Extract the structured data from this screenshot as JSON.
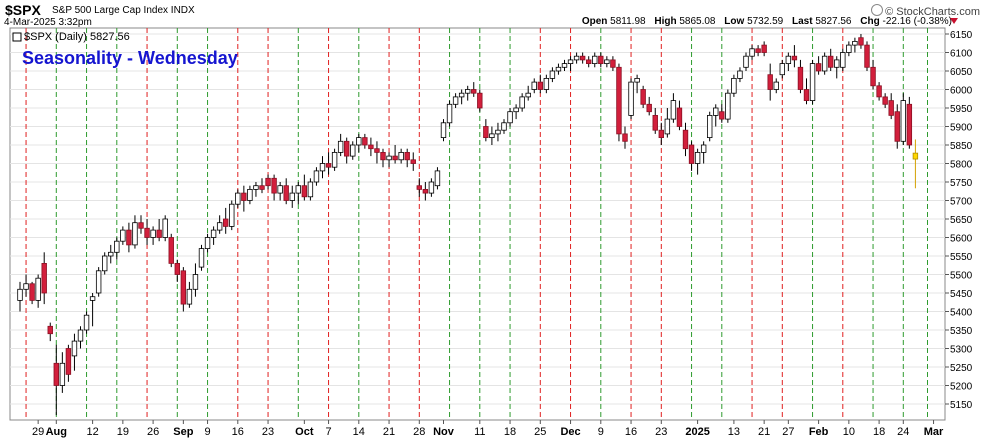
{
  "header": {
    "symbol": "$SPX",
    "name": "S&P 500 Large Cap Index",
    "exchange": "INDX",
    "brand": "© StockCharts.com",
    "datetime": "4-Mar-2025 3:32pm",
    "open_label": "Open",
    "open": "5811.98",
    "high_label": "High",
    "high": "5865.08",
    "low_label": "Low",
    "low": "5732.59",
    "last_label": "Last",
    "last": "5827.56",
    "chg_label": "Chg",
    "chg": "-22.16 (-0.38%)",
    "legend": "$SPX (Daily) 5827.56",
    "overlay_title": "Seasonality - Wednesday"
  },
  "colors": {
    "up": "#ffffff",
    "down": "#d21f3c",
    "current": "#ffd700",
    "green_line": "#2e9b2e",
    "red_line": "#e02020",
    "overlay_title": "#1515d0"
  },
  "chart_data": {
    "type": "candlestick",
    "title": "Seasonality - Wednesday",
    "series_name": "$SPX (Daily)",
    "ylim": [
      5100,
      6175
    ],
    "y_ticks": [
      5150,
      5200,
      5250,
      5300,
      5350,
      5400,
      5450,
      5500,
      5550,
      5600,
      5650,
      5700,
      5750,
      5800,
      5850,
      5900,
      5950,
      6000,
      6050,
      6100,
      6150
    ],
    "x_tick_labels": [
      {
        "label": "29",
        "bold": false,
        "day": 3
      },
      {
        "label": "Aug",
        "bold": true,
        "day": 6
      },
      {
        "label": "12",
        "bold": false,
        "day": 12
      },
      {
        "label": "19",
        "bold": false,
        "day": 17
      },
      {
        "label": "26",
        "bold": false,
        "day": 22
      },
      {
        "label": "Sep",
        "bold": true,
        "day": 27
      },
      {
        "label": "9",
        "bold": false,
        "day": 31
      },
      {
        "label": "16",
        "bold": false,
        "day": 36
      },
      {
        "label": "23",
        "bold": false,
        "day": 41
      },
      {
        "label": "Oct",
        "bold": true,
        "day": 47
      },
      {
        "label": "7",
        "bold": false,
        "day": 51
      },
      {
        "label": "14",
        "bold": false,
        "day": 56
      },
      {
        "label": "21",
        "bold": false,
        "day": 61
      },
      {
        "label": "28",
        "bold": false,
        "day": 66
      },
      {
        "label": "Nov",
        "bold": true,
        "day": 70
      },
      {
        "label": "11",
        "bold": false,
        "day": 76
      },
      {
        "label": "18",
        "bold": false,
        "day": 81
      },
      {
        "label": "25",
        "bold": false,
        "day": 86
      },
      {
        "label": "Dec",
        "bold": true,
        "day": 91
      },
      {
        "label": "9",
        "bold": false,
        "day": 96
      },
      {
        "label": "16",
        "bold": false,
        "day": 101
      },
      {
        "label": "23",
        "bold": false,
        "day": 106
      },
      {
        "label": "2025",
        "bold": true,
        "day": 112
      },
      {
        "label": "13",
        "bold": false,
        "day": 118
      },
      {
        "label": "21",
        "bold": false,
        "day": 123
      },
      {
        "label": "27",
        "bold": false,
        "day": 127
      },
      {
        "label": "Feb",
        "bold": true,
        "day": 132
      },
      {
        "label": "10",
        "bold": false,
        "day": 137
      },
      {
        "label": "18",
        "bold": false,
        "day": 142
      },
      {
        "label": "24",
        "bold": false,
        "day": 146
      },
      {
        "label": "Mar",
        "bold": true,
        "day": 151
      }
    ],
    "wednesday_markers": [
      {
        "day": 1,
        "color": "red"
      },
      {
        "day": 6,
        "color": "green"
      },
      {
        "day": 11,
        "color": "green"
      },
      {
        "day": 16,
        "color": "green"
      },
      {
        "day": 21,
        "color": "red"
      },
      {
        "day": 26,
        "color": "green"
      },
      {
        "day": 31,
        "color": "green"
      },
      {
        "day": 36,
        "color": "red"
      },
      {
        "day": 41,
        "color": "red"
      },
      {
        "day": 46,
        "color": "green"
      },
      {
        "day": 51,
        "color": "red"
      },
      {
        "day": 56,
        "color": "green"
      },
      {
        "day": 61,
        "color": "red"
      },
      {
        "day": 66,
        "color": "red"
      },
      {
        "day": 71,
        "color": "green"
      },
      {
        "day": 76,
        "color": "green"
      },
      {
        "day": 81,
        "color": "green"
      },
      {
        "day": 86,
        "color": "red"
      },
      {
        "day": 91,
        "color": "red"
      },
      {
        "day": 96,
        "color": "green"
      },
      {
        "day": 101,
        "color": "red"
      },
      {
        "day": 106,
        "color": "red"
      },
      {
        "day": 111,
        "color": "green"
      },
      {
        "day": 116,
        "color": "green"
      },
      {
        "day": 121,
        "color": "red"
      },
      {
        "day": 126,
        "color": "red"
      },
      {
        "day": 131,
        "color": "green"
      },
      {
        "day": 136,
        "color": "red"
      },
      {
        "day": 141,
        "color": "green"
      },
      {
        "day": 146,
        "color": "green"
      },
      {
        "day": 150,
        "color": "green"
      }
    ],
    "candles": [
      {
        "o": 5430,
        "h": 5480,
        "l": 5400,
        "c": 5460
      },
      {
        "o": 5460,
        "h": 5500,
        "l": 5440,
        "c": 5475
      },
      {
        "o": 5475,
        "h": 5480,
        "l": 5420,
        "c": 5430
      },
      {
        "o": 5430,
        "h": 5500,
        "l": 5410,
        "c": 5490
      },
      {
        "o": 5530,
        "h": 5560,
        "l": 5420,
        "c": 5450
      },
      {
        "o": 5360,
        "h": 5370,
        "l": 5320,
        "c": 5340
      },
      {
        "o": 5260,
        "h": 5310,
        "l": 5120,
        "c": 5200
      },
      {
        "o": 5200,
        "h": 5290,
        "l": 5180,
        "c": 5260
      },
      {
        "o": 5300,
        "h": 5310,
        "l": 5210,
        "c": 5230
      },
      {
        "o": 5280,
        "h": 5340,
        "l": 5240,
        "c": 5320
      },
      {
        "o": 5320,
        "h": 5360,
        "l": 5300,
        "c": 5350
      },
      {
        "o": 5350,
        "h": 5400,
        "l": 5340,
        "c": 5390
      },
      {
        "o": 5430,
        "h": 5450,
        "l": 5360,
        "c": 5440
      },
      {
        "o": 5450,
        "h": 5520,
        "l": 5440,
        "c": 5510
      },
      {
        "o": 5510,
        "h": 5560,
        "l": 5500,
        "c": 5550
      },
      {
        "o": 5550,
        "h": 5580,
        "l": 5530,
        "c": 5560
      },
      {
        "o": 5560,
        "h": 5600,
        "l": 5540,
        "c": 5590
      },
      {
        "o": 5590,
        "h": 5630,
        "l": 5580,
        "c": 5620
      },
      {
        "o": 5620,
        "h": 5640,
        "l": 5560,
        "c": 5580
      },
      {
        "o": 5580,
        "h": 5660,
        "l": 5570,
        "c": 5640
      },
      {
        "o": 5640,
        "h": 5660,
        "l": 5610,
        "c": 5625
      },
      {
        "o": 5625,
        "h": 5650,
        "l": 5580,
        "c": 5600
      },
      {
        "o": 5600,
        "h": 5630,
        "l": 5580,
        "c": 5620
      },
      {
        "o": 5620,
        "h": 5650,
        "l": 5590,
        "c": 5600
      },
      {
        "o": 5600,
        "h": 5660,
        "l": 5590,
        "c": 5650
      },
      {
        "o": 5600,
        "h": 5610,
        "l": 5520,
        "c": 5530
      },
      {
        "o": 5530,
        "h": 5540,
        "l": 5480,
        "c": 5500
      },
      {
        "o": 5510,
        "h": 5520,
        "l": 5400,
        "c": 5420
      },
      {
        "o": 5420,
        "h": 5480,
        "l": 5410,
        "c": 5460
      },
      {
        "o": 5460,
        "h": 5530,
        "l": 5440,
        "c": 5500
      },
      {
        "o": 5520,
        "h": 5580,
        "l": 5510,
        "c": 5570
      },
      {
        "o": 5570,
        "h": 5610,
        "l": 5560,
        "c": 5600
      },
      {
        "o": 5600,
        "h": 5630,
        "l": 5580,
        "c": 5620
      },
      {
        "o": 5620,
        "h": 5660,
        "l": 5610,
        "c": 5640
      },
      {
        "o": 5650,
        "h": 5680,
        "l": 5610,
        "c": 5630
      },
      {
        "o": 5630,
        "h": 5700,
        "l": 5620,
        "c": 5690
      },
      {
        "o": 5690,
        "h": 5730,
        "l": 5680,
        "c": 5720
      },
      {
        "o": 5720,
        "h": 5740,
        "l": 5670,
        "c": 5700
      },
      {
        "o": 5700,
        "h": 5740,
        "l": 5690,
        "c": 5730
      },
      {
        "o": 5730,
        "h": 5750,
        "l": 5710,
        "c": 5740
      },
      {
        "o": 5740,
        "h": 5760,
        "l": 5720,
        "c": 5730
      },
      {
        "o": 5760,
        "h": 5770,
        "l": 5730,
        "c": 5740
      },
      {
        "o": 5760,
        "h": 5770,
        "l": 5700,
        "c": 5720
      },
      {
        "o": 5720,
        "h": 5750,
        "l": 5700,
        "c": 5740
      },
      {
        "o": 5740,
        "h": 5760,
        "l": 5690,
        "c": 5700
      },
      {
        "o": 5700,
        "h": 5740,
        "l": 5680,
        "c": 5720
      },
      {
        "o": 5720,
        "h": 5750,
        "l": 5690,
        "c": 5740
      },
      {
        "o": 5740,
        "h": 5770,
        "l": 5700,
        "c": 5710
      },
      {
        "o": 5710,
        "h": 5760,
        "l": 5700,
        "c": 5750
      },
      {
        "o": 5750,
        "h": 5790,
        "l": 5740,
        "c": 5780
      },
      {
        "o": 5780,
        "h": 5820,
        "l": 5760,
        "c": 5800
      },
      {
        "o": 5800,
        "h": 5830,
        "l": 5770,
        "c": 5790
      },
      {
        "o": 5790,
        "h": 5840,
        "l": 5780,
        "c": 5830
      },
      {
        "o": 5830,
        "h": 5880,
        "l": 5820,
        "c": 5860
      },
      {
        "o": 5860,
        "h": 5870,
        "l": 5800,
        "c": 5820
      },
      {
        "o": 5820,
        "h": 5860,
        "l": 5810,
        "c": 5850
      },
      {
        "o": 5850,
        "h": 5880,
        "l": 5830,
        "c": 5870
      },
      {
        "o": 5870,
        "h": 5880,
        "l": 5840,
        "c": 5850
      },
      {
        "o": 5850,
        "h": 5870,
        "l": 5820,
        "c": 5840
      },
      {
        "o": 5840,
        "h": 5860,
        "l": 5800,
        "c": 5830
      },
      {
        "o": 5830,
        "h": 5840,
        "l": 5790,
        "c": 5810
      },
      {
        "o": 5810,
        "h": 5830,
        "l": 5790,
        "c": 5820
      },
      {
        "o": 5820,
        "h": 5850,
        "l": 5800,
        "c": 5810
      },
      {
        "o": 5810,
        "h": 5840,
        "l": 5800,
        "c": 5830
      },
      {
        "o": 5830,
        "h": 5840,
        "l": 5790,
        "c": 5810
      },
      {
        "o": 5810,
        "h": 5830,
        "l": 5780,
        "c": 5800
      },
      {
        "o": 5740,
        "h": 5760,
        "l": 5710,
        "c": 5730
      },
      {
        "o": 5730,
        "h": 5750,
        "l": 5700,
        "c": 5720
      },
      {
        "o": 5720,
        "h": 5760,
        "l": 5710,
        "c": 5750
      },
      {
        "o": 5740,
        "h": 5790,
        "l": 5730,
        "c": 5780
      },
      {
        "o": 5870,
        "h": 5920,
        "l": 5860,
        "c": 5910
      },
      {
        "o": 5910,
        "h": 5970,
        "l": 5900,
        "c": 5960
      },
      {
        "o": 5960,
        "h": 5990,
        "l": 5950,
        "c": 5980
      },
      {
        "o": 5980,
        "h": 6000,
        "l": 5960,
        "c": 5990
      },
      {
        "o": 5990,
        "h": 6010,
        "l": 5970,
        "c": 6000
      },
      {
        "o": 6000,
        "h": 6020,
        "l": 5980,
        "c": 5990
      },
      {
        "o": 5990,
        "h": 6000,
        "l": 5940,
        "c": 5950
      },
      {
        "o": 5900,
        "h": 5920,
        "l": 5860,
        "c": 5870
      },
      {
        "o": 5870,
        "h": 5900,
        "l": 5850,
        "c": 5880
      },
      {
        "o": 5880,
        "h": 5910,
        "l": 5860,
        "c": 5890
      },
      {
        "o": 5890,
        "h": 5920,
        "l": 5880,
        "c": 5910
      },
      {
        "o": 5910,
        "h": 5950,
        "l": 5900,
        "c": 5940
      },
      {
        "o": 5940,
        "h": 5960,
        "l": 5920,
        "c": 5950
      },
      {
        "o": 5950,
        "h": 5990,
        "l": 5940,
        "c": 5980
      },
      {
        "o": 5980,
        "h": 6010,
        "l": 5970,
        "c": 5990
      },
      {
        "o": 6000,
        "h": 6030,
        "l": 5990,
        "c": 6020
      },
      {
        "o": 6020,
        "h": 6040,
        "l": 5990,
        "c": 6000
      },
      {
        "o": 6000,
        "h": 6040,
        "l": 5990,
        "c": 6030
      },
      {
        "o": 6030,
        "h": 6060,
        "l": 6020,
        "c": 6050
      },
      {
        "o": 6050,
        "h": 6070,
        "l": 6040,
        "c": 6060
      },
      {
        "o": 6060,
        "h": 6080,
        "l": 6050,
        "c": 6070
      },
      {
        "o": 6070,
        "h": 6090,
        "l": 6050,
        "c": 6080
      },
      {
        "o": 6080,
        "h": 6100,
        "l": 6070,
        "c": 6090
      },
      {
        "o": 6090,
        "h": 6100,
        "l": 6070,
        "c": 6080
      },
      {
        "o": 6080,
        "h": 6090,
        "l": 6060,
        "c": 6070
      },
      {
        "o": 6070,
        "h": 6100,
        "l": 6060,
        "c": 6090
      },
      {
        "o": 6090,
        "h": 6100,
        "l": 6060,
        "c": 6070
      },
      {
        "o": 6070,
        "h": 6090,
        "l": 6060,
        "c": 6080
      },
      {
        "o": 6080,
        "h": 6090,
        "l": 6050,
        "c": 6060
      },
      {
        "o": 6060,
        "h": 6070,
        "l": 5860,
        "c": 5880
      },
      {
        "o": 5880,
        "h": 5900,
        "l": 5840,
        "c": 5860
      },
      {
        "o": 5930,
        "h": 6030,
        "l": 5920,
        "c": 6020
      },
      {
        "o": 6020,
        "h": 6040,
        "l": 5990,
        "c": 6030
      },
      {
        "o": 6000,
        "h": 6010,
        "l": 5950,
        "c": 5960
      },
      {
        "o": 5960,
        "h": 5980,
        "l": 5930,
        "c": 5940
      },
      {
        "o": 5930,
        "h": 5950,
        "l": 5880,
        "c": 5890
      },
      {
        "o": 5890,
        "h": 5910,
        "l": 5850,
        "c": 5870
      },
      {
        "o": 5880,
        "h": 5950,
        "l": 5870,
        "c": 5920
      },
      {
        "o": 5920,
        "h": 5990,
        "l": 5910,
        "c": 5970
      },
      {
        "o": 5950,
        "h": 5970,
        "l": 5890,
        "c": 5900
      },
      {
        "o": 5890,
        "h": 5910,
        "l": 5820,
        "c": 5840
      },
      {
        "o": 5850,
        "h": 5860,
        "l": 5780,
        "c": 5800
      },
      {
        "o": 5800,
        "h": 5840,
        "l": 5770,
        "c": 5830
      },
      {
        "o": 5830,
        "h": 5860,
        "l": 5800,
        "c": 5850
      },
      {
        "o": 5870,
        "h": 5940,
        "l": 5860,
        "c": 5930
      },
      {
        "o": 5930,
        "h": 5960,
        "l": 5900,
        "c": 5950
      },
      {
        "o": 5940,
        "h": 5960,
        "l": 5910,
        "c": 5920
      },
      {
        "o": 5920,
        "h": 6000,
        "l": 5910,
        "c": 5990
      },
      {
        "o": 5990,
        "h": 6040,
        "l": 5980,
        "c": 6030
      },
      {
        "o": 6030,
        "h": 6060,
        "l": 6020,
        "c": 6050
      },
      {
        "o": 6060,
        "h": 6100,
        "l": 6050,
        "c": 6090
      },
      {
        "o": 6090,
        "h": 6120,
        "l": 6080,
        "c": 6110
      },
      {
        "o": 6110,
        "h": 6120,
        "l": 6090,
        "c": 6100
      },
      {
        "o": 6120,
        "h": 6130,
        "l": 6090,
        "c": 6100
      },
      {
        "o": 6040,
        "h": 6070,
        "l": 5970,
        "c": 6000
      },
      {
        "o": 6000,
        "h": 6030,
        "l": 5990,
        "c": 6020
      },
      {
        "o": 6040,
        "h": 6080,
        "l": 6030,
        "c": 6070
      },
      {
        "o": 6070,
        "h": 6100,
        "l": 6050,
        "c": 6090
      },
      {
        "o": 6090,
        "h": 6120,
        "l": 6060,
        "c": 6080
      },
      {
        "o": 6060,
        "h": 6080,
        "l": 5990,
        "c": 6000
      },
      {
        "o": 6000,
        "h": 6030,
        "l": 5960,
        "c": 5970
      },
      {
        "o": 5970,
        "h": 6080,
        "l": 5960,
        "c": 6070
      },
      {
        "o": 6070,
        "h": 6090,
        "l": 6040,
        "c": 6050
      },
      {
        "o": 6050,
        "h": 6100,
        "l": 6040,
        "c": 6090
      },
      {
        "o": 6090,
        "h": 6110,
        "l": 6050,
        "c": 6060
      },
      {
        "o": 6060,
        "h": 6090,
        "l": 6030,
        "c": 6080
      },
      {
        "o": 6060,
        "h": 6110,
        "l": 6050,
        "c": 6100
      },
      {
        "o": 6100,
        "h": 6130,
        "l": 6090,
        "c": 6120
      },
      {
        "o": 6120,
        "h": 6140,
        "l": 6100,
        "c": 6130
      },
      {
        "o": 6140,
        "h": 6150,
        "l": 6110,
        "c": 6120
      },
      {
        "o": 6120,
        "h": 6130,
        "l": 6050,
        "c": 6060
      },
      {
        "o": 6060,
        "h": 6080,
        "l": 6000,
        "c": 6010
      },
      {
        "o": 6010,
        "h": 6020,
        "l": 5970,
        "c": 5980
      },
      {
        "o": 5980,
        "h": 5990,
        "l": 5950,
        "c": 5960
      },
      {
        "o": 5970,
        "h": 5990,
        "l": 5920,
        "c": 5930
      },
      {
        "o": 5940,
        "h": 5960,
        "l": 5840,
        "c": 5860
      },
      {
        "o": 5860,
        "h": 5990,
        "l": 5850,
        "c": 5970
      },
      {
        "o": 5960,
        "h": 5980,
        "l": 5840,
        "c": 5850
      },
      {
        "o": 5812,
        "h": 5865,
        "l": 5733,
        "c": 5828,
        "current": true
      }
    ]
  }
}
